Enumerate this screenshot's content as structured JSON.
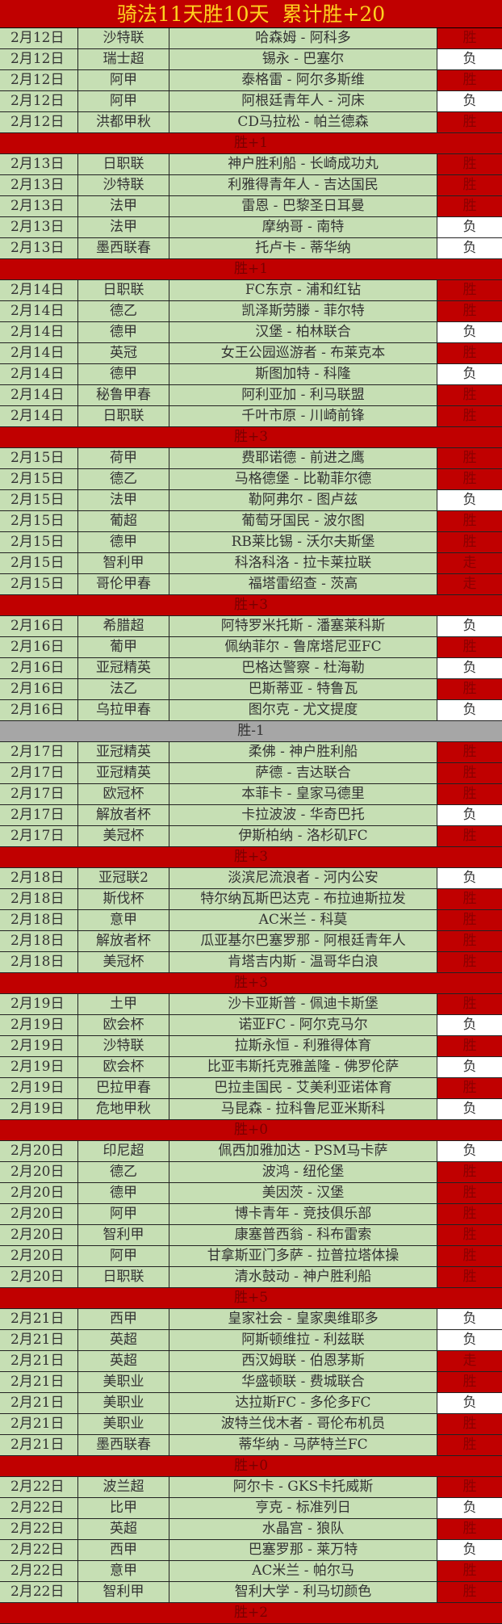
{
  "title": "骑法11天胜10天  累计胜+20",
  "colors": {
    "header_bg": "#c00000",
    "title_text": "#ffd21f",
    "cell_bg": "#c6dfb4",
    "win_bg": "#c00000",
    "loss_bg": "#ffffff",
    "negative_summary_bg": "#a6a6a6"
  },
  "days": [
    {
      "rows": [
        [
          "2月12日",
          "沙特联",
          "哈森姆 - 阿科多",
          "胜"
        ],
        [
          "2月12日",
          "瑞士超",
          "锡永 - 巴塞尔",
          "负"
        ],
        [
          "2月12日",
          "阿甲",
          "泰格雷 - 阿尔多斯维",
          "胜"
        ],
        [
          "2月12日",
          "阿甲",
          "阿根廷青年人 - 河床",
          "负"
        ],
        [
          "2月12日",
          "洪都甲秋",
          "CD马拉松 - 帕兰德森",
          "胜"
        ]
      ],
      "summary": "胜+1"
    },
    {
      "rows": [
        [
          "2月13日",
          "日职联",
          "神户胜利船 - 长崎成功丸",
          "胜"
        ],
        [
          "2月13日",
          "沙特联",
          "利雅得青年人 - 吉达国民",
          "胜"
        ],
        [
          "2月13日",
          "法甲",
          "雷恩 - 巴黎圣日耳曼",
          "胜"
        ],
        [
          "2月13日",
          "法甲",
          "摩纳哥 - 南特",
          "负"
        ],
        [
          "2月13日",
          "墨西联春",
          "托卢卡 - 蒂华纳",
          "负"
        ]
      ],
      "summary": "胜+1"
    },
    {
      "rows": [
        [
          "2月14日",
          "日职联",
          "FC东京 - 浦和红钻",
          "胜"
        ],
        [
          "2月14日",
          "德乙",
          "凯泽斯劳滕 - 菲尔特",
          "胜"
        ],
        [
          "2月14日",
          "德甲",
          "汉堡 - 柏林联合",
          "负"
        ],
        [
          "2月14日",
          "英冠",
          "女王公园巡游者 - 布莱克本",
          "胜"
        ],
        [
          "2月14日",
          "德甲",
          "斯图加特 - 科隆",
          "负"
        ],
        [
          "2月14日",
          "秘鲁甲春",
          "阿利亚加 - 利马联盟",
          "胜"
        ],
        [
          "2月14日",
          "日职联",
          "千叶市原 - 川崎前锋",
          "胜"
        ]
      ],
      "summary": "胜+3"
    },
    {
      "rows": [
        [
          "2月15日",
          "荷甲",
          "费耶诺德 - 前进之鹰",
          "胜"
        ],
        [
          "2月15日",
          "德乙",
          "马格德堡 - 比勒菲尔德",
          "胜"
        ],
        [
          "2月15日",
          "法甲",
          "勒阿弗尔 - 图卢兹",
          "负"
        ],
        [
          "2月15日",
          "葡超",
          "葡萄牙国民 - 波尔图",
          "胜"
        ],
        [
          "2月15日",
          "德甲",
          "RB莱比锡 - 沃尔夫斯堡",
          "胜"
        ],
        [
          "2月15日",
          "智利甲",
          "科洛科洛 - 拉卡莱拉联",
          "走"
        ],
        [
          "2月15日",
          "哥伦甲春",
          "福塔雷绍查 - 茨高",
          "走"
        ]
      ],
      "summary": "胜+3"
    },
    {
      "rows": [
        [
          "2月16日",
          "希腊超",
          "阿特罗米托斯 - 潘塞莱科斯",
          "负"
        ],
        [
          "2月16日",
          "葡甲",
          "佩纳菲尔 - 鲁席塔尼亚FC",
          "胜"
        ],
        [
          "2月16日",
          "亚冠精英",
          "巴格达警察 - 杜海勒",
          "负"
        ],
        [
          "2月16日",
          "法乙",
          "巴斯蒂亚 - 特鲁瓦",
          "胜"
        ],
        [
          "2月16日",
          "乌拉甲春",
          "图尔克 - 尤文提度",
          "负"
        ]
      ],
      "summary": "胜-1"
    },
    {
      "rows": [
        [
          "2月17日",
          "亚冠精英",
          "柔佛 - 神户胜利船",
          "胜"
        ],
        [
          "2月17日",
          "亚冠精英",
          "萨德 - 吉达联合",
          "胜"
        ],
        [
          "2月17日",
          "欧冠杯",
          "本菲卡 - 皇家马德里",
          "胜"
        ],
        [
          "2月17日",
          "解放者杯",
          "卡拉波波 - 华奇巴托",
          "负"
        ],
        [
          "2月17日",
          "美冠杯",
          "伊斯柏纳 - 洛杉矶FC",
          "胜"
        ]
      ],
      "summary": "胜+3"
    },
    {
      "rows": [
        [
          "2月18日",
          "亚冠联2",
          "淡滨尼流浪者 - 河内公安",
          "负"
        ],
        [
          "2月18日",
          "斯伐杯",
          "特尔纳瓦斯巴达克 - 布拉迪斯拉发",
          "胜"
        ],
        [
          "2月18日",
          "意甲",
          "AC米兰 - 科莫",
          "胜"
        ],
        [
          "2月18日",
          "解放者杯",
          "瓜亚基尔巴塞罗那 - 阿根廷青年人",
          "胜"
        ],
        [
          "2月18日",
          "美冠杯",
          "肯塔吉内斯 - 温哥华白浪",
          "胜"
        ]
      ],
      "summary": "胜+3"
    },
    {
      "rows": [
        [
          "2月19日",
          "土甲",
          "沙卡亚斯普 - 佩迪卡斯堡",
          "胜"
        ],
        [
          "2月19日",
          "欧会杯",
          "诺亚FC - 阿尔克马尔",
          "负"
        ],
        [
          "2月19日",
          "沙特联",
          "拉斯永恒 - 利雅得体育",
          "胜"
        ],
        [
          "2月19日",
          "欧会杯",
          "比亚韦斯托克雅盖隆 - 佛罗伦萨",
          "负"
        ],
        [
          "2月19日",
          "巴拉甲春",
          "巴拉圭国民 - 艾美利亚诺体育",
          "胜"
        ],
        [
          "2月19日",
          "危地甲秋",
          "马昆森 - 拉科鲁尼亚米斯科",
          "负"
        ]
      ],
      "summary": "胜+0"
    },
    {
      "rows": [
        [
          "2月20日",
          "印尼超",
          "佩西加雅加达 - PSM马卡萨",
          "负"
        ],
        [
          "2月20日",
          "德乙",
          "波鸿 - 纽伦堡",
          "胜"
        ],
        [
          "2月20日",
          "德甲",
          "美因茨 - 汉堡",
          "胜"
        ],
        [
          "2月20日",
          "阿甲",
          "博卡青年 - 竞技俱乐部",
          "胜"
        ],
        [
          "2月20日",
          "智利甲",
          "康塞普西翁 - 科布雷索",
          "胜"
        ],
        [
          "2月20日",
          "阿甲",
          "甘拿斯亚门多萨 - 拉普拉塔体操",
          "胜"
        ],
        [
          "2月20日",
          "日职联",
          "清水鼓动 - 神户胜利船",
          "胜"
        ]
      ],
      "summary": "胜+5"
    },
    {
      "rows": [
        [
          "2月21日",
          "西甲",
          "皇家社会 - 皇家奥维耶多",
          "负"
        ],
        [
          "2月21日",
          "英超",
          "阿斯顿维拉 - 利兹联",
          "负"
        ],
        [
          "2月21日",
          "英超",
          "西汉姆联 - 伯恩茅斯",
          "走"
        ],
        [
          "2月21日",
          "美职业",
          "华盛顿联 - 费城联合",
          "胜"
        ],
        [
          "2月21日",
          "美职业",
          "达拉斯FC - 多伦多FC",
          "负"
        ],
        [
          "2月21日",
          "美职业",
          "波特兰伐木者 - 哥伦布机员",
          "胜"
        ],
        [
          "2月21日",
          "墨西联春",
          "蒂华纳 - 马萨特兰FC",
          "胜"
        ]
      ],
      "summary": "胜+0"
    },
    {
      "rows": [
        [
          "2月22日",
          "波兰超",
          "阿尔卡 - GKS卡托威斯",
          "胜"
        ],
        [
          "2月22日",
          "比甲",
          "亨克 - 标准列日",
          "负"
        ],
        [
          "2月22日",
          "英超",
          "水晶宫 - 狼队",
          "胜"
        ],
        [
          "2月22日",
          "西甲",
          "巴塞罗那 - 莱万特",
          "负"
        ],
        [
          "2月22日",
          "意甲",
          "AC米兰 - 帕尔马",
          "胜"
        ],
        [
          "2月22日",
          "智利甲",
          "智利大学 - 利马切颜色",
          "胜"
        ]
      ],
      "summary": "胜+2"
    }
  ]
}
